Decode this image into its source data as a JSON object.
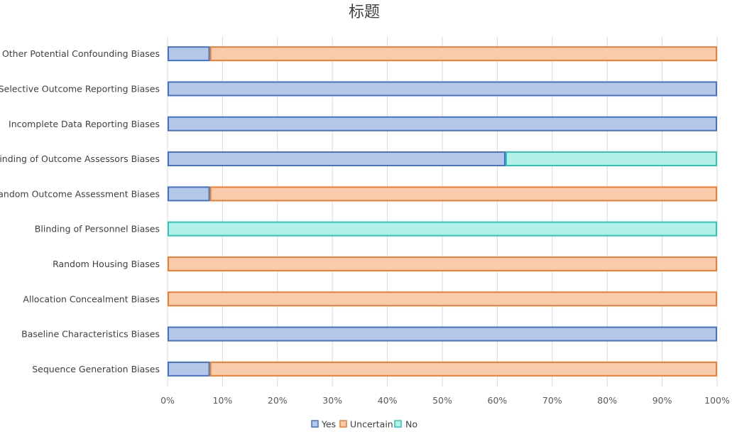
{
  "chart_data": {
    "type": "bar",
    "orientation": "horizontal",
    "stacked": "percent",
    "title": "标题",
    "xlabel": "",
    "ylabel": "",
    "xlim": [
      0,
      100
    ],
    "x_ticks": [
      "0%",
      "10%",
      "20%",
      "30%",
      "40%",
      "50%",
      "60%",
      "70%",
      "80%",
      "90%",
      "100%"
    ],
    "grid": true,
    "legend_position": "bottom",
    "categories": [
      "Other Potential Confounding Biases",
      "Selective Outcome Reporting Biases",
      "Incomplete Data Reporting Biases",
      "Blinding of Outcome Assessors Biases",
      "Random Outcome Assessment Biases",
      "Blinding of Personnel Biases",
      "Random Housing Biases",
      "Allocation Concealment Biases",
      "Baseline Characteristics Biases",
      "Sequence Generation Biases"
    ],
    "series": [
      {
        "name": "Yes",
        "fill": "#b4c7e7",
        "stroke": "#4472c4",
        "values": [
          7.7,
          100,
          100,
          61.5,
          7.7,
          0,
          0,
          0,
          100,
          7.7
        ]
      },
      {
        "name": "Uncertain",
        "fill": "#f8cbad",
        "stroke": "#ed7d31",
        "values": [
          92.3,
          0,
          0,
          0,
          92.3,
          0,
          100,
          100,
          0,
          92.3
        ]
      },
      {
        "name": "No",
        "fill": "#b3f0e8",
        "stroke": "#2ec4b6",
        "values": [
          0,
          0,
          0,
          38.5,
          0,
          100,
          0,
          0,
          0,
          0
        ]
      }
    ]
  }
}
